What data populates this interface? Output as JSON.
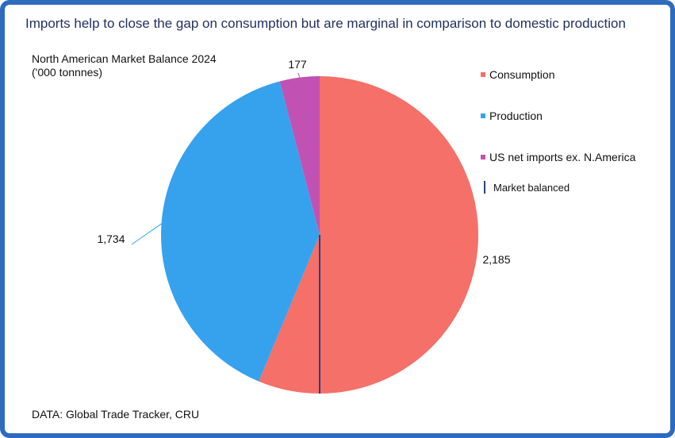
{
  "title": "Imports help to close the gap on consumption but are marginal in comparison to domestic production",
  "subtitle_line1": "North American Market Balance 2024",
  "subtitle_line2": "('000 tonnnes)",
  "source": "DATA: Global Trade Tracker, CRU",
  "colors": {
    "consumption": "#f47068",
    "production": "#36a2ee",
    "imports": "#c251b4",
    "market_balanced": "#2a3f86",
    "frame": "#2e6bbf"
  },
  "legend": [
    {
      "key": "consumption",
      "label": "Consumption"
    },
    {
      "key": "production",
      "label": "Production"
    },
    {
      "key": "imports",
      "label": "US net imports ex. N.America"
    },
    {
      "key": "market_balanced",
      "label": "Market balanced"
    }
  ],
  "chart_data": {
    "type": "pie",
    "slices": [
      {
        "name": "Consumption",
        "value": 2185,
        "label": "2,185"
      },
      {
        "name": "Production",
        "value": 1734,
        "label": "1,734"
      },
      {
        "name": "US net imports ex. N.America",
        "value": 177,
        "label": "177"
      }
    ],
    "reference_line": {
      "name": "Market balanced",
      "position": "vertical center divider"
    },
    "legend_position": "right"
  }
}
